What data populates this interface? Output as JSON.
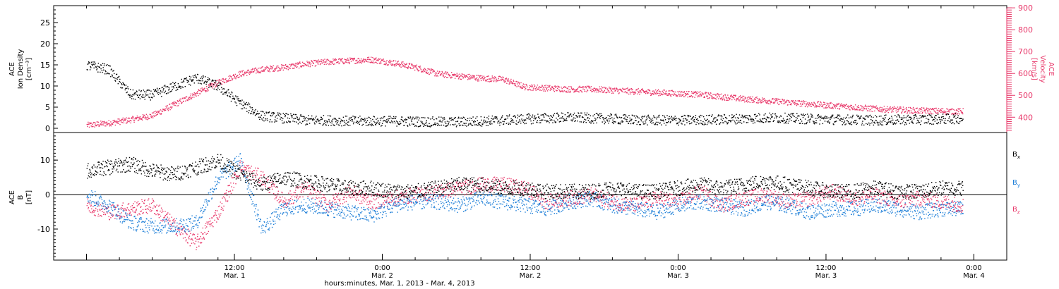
{
  "chart_data": [
    {
      "type": "scatter",
      "panel": "top",
      "ylabel_left": [
        "ACE",
        "Ion Density",
        "[cm⁻³]"
      ],
      "ylabel_right": [
        "ACE",
        "Velocity",
        "[km/s]"
      ],
      "ylim_left": [
        -1,
        29
      ],
      "ylim_right": [
        330,
        910
      ],
      "yticks_left": [
        0,
        5,
        10,
        15,
        20,
        25
      ],
      "yticks_right": [
        400,
        500,
        600,
        700,
        800,
        900
      ],
      "series": [
        {
          "axis": "left",
          "color": "#000000",
          "x": [
            0,
            2,
            4,
            6,
            8,
            10,
            12,
            14,
            16,
            18,
            20,
            22,
            24,
            26,
            28,
            30,
            32,
            34,
            36,
            38,
            40,
            42,
            44,
            46,
            48,
            50,
            52,
            54,
            56,
            58,
            60,
            62,
            64,
            66,
            68,
            70,
            72,
            74,
            76,
            78,
            80
          ],
          "y": [
            15,
            14,
            8,
            8,
            10,
            12,
            10,
            6,
            3,
            2.5,
            2,
            2,
            1.8,
            1.8,
            1.8,
            1.7,
            1.6,
            1.6,
            1.8,
            2,
            2.3,
            2.5,
            2.7,
            2.5,
            2.3,
            2.1,
            2,
            2,
            2.1,
            2.2,
            2.4,
            2.6,
            2.5,
            2.3,
            2.2,
            2.1,
            2.0,
            2.1,
            2.2,
            2.3,
            2.4
          ]
        },
        {
          "axis": "right",
          "color": "#e8386a",
          "x": [
            0,
            2,
            4,
            6,
            8,
            10,
            12,
            14,
            16,
            18,
            20,
            22,
            24,
            26,
            28,
            30,
            32,
            34,
            36,
            38,
            40,
            42,
            44,
            46,
            48,
            50,
            52,
            54,
            56,
            58,
            60,
            62,
            64,
            66,
            68,
            70,
            72,
            74,
            76,
            78,
            80
          ],
          "y": [
            365,
            375,
            390,
            410,
            460,
            510,
            560,
            600,
            620,
            630,
            645,
            655,
            660,
            665,
            650,
            630,
            600,
            590,
            580,
            575,
            540,
            535,
            530,
            530,
            525,
            520,
            515,
            510,
            505,
            495,
            485,
            478,
            470,
            462,
            455,
            448,
            440,
            436,
            432,
            430,
            428
          ]
        }
      ]
    },
    {
      "type": "scatter",
      "panel": "bottom",
      "ylabel": [
        "ACE",
        "B",
        "[nT]"
      ],
      "ylim": [
        -19,
        18
      ],
      "yticks": [
        -10,
        0,
        10
      ],
      "xlabel": "hours:minutes, Mar.  1, 2013 - Mar.  4, 2013",
      "xlim": [
        -3,
        84
      ],
      "xticks": [
        {
          "x": 0,
          "time": "",
          "date": ""
        },
        {
          "x": 13.5,
          "time": "12:00",
          "date": "Mar. 1"
        },
        {
          "x": 27,
          "time": "0:00",
          "date": "Mar. 2"
        },
        {
          "x": 40.5,
          "time": "12:00",
          "date": "Mar. 2"
        },
        {
          "x": 54,
          "time": "0:00",
          "date": "Mar. 3"
        },
        {
          "x": 67.5,
          "time": "12:00",
          "date": "Mar. 3"
        },
        {
          "x": 81,
          "time": "0:00",
          "date": "Mar. 4"
        }
      ],
      "legend": [
        "Bx",
        "By",
        "Bz"
      ],
      "series": [
        {
          "name": "Bx",
          "color": "#000000",
          "x": [
            0,
            2,
            4,
            6,
            8,
            10,
            12,
            14,
            16,
            18,
            20,
            22,
            24,
            26,
            28,
            30,
            32,
            34,
            36,
            38,
            40,
            42,
            44,
            46,
            48,
            50,
            52,
            54,
            56,
            58,
            60,
            62,
            64,
            66,
            68,
            70,
            72,
            74,
            76,
            78,
            80
          ],
          "y": [
            7,
            8,
            9,
            7,
            6,
            8,
            10,
            6,
            3,
            5,
            4,
            3,
            2,
            2,
            1,
            1,
            2,
            3,
            3,
            2,
            2,
            1,
            1,
            1,
            2,
            1,
            1,
            2,
            3,
            2,
            3,
            4,
            3,
            2,
            1,
            1,
            2,
            1,
            1,
            2,
            2
          ]
        },
        {
          "name": "By",
          "color": "#1e7fd8",
          "x": [
            0,
            2,
            4,
            6,
            8,
            10,
            12,
            14,
            16,
            18,
            20,
            22,
            24,
            26,
            28,
            30,
            32,
            34,
            36,
            38,
            40,
            42,
            44,
            46,
            48,
            50,
            52,
            54,
            56,
            58,
            60,
            62,
            64,
            66,
            68,
            70,
            72,
            74,
            76,
            78,
            80
          ],
          "y": [
            0,
            -3,
            -8,
            -9,
            -9,
            -8,
            5,
            10,
            -10,
            -4,
            -3,
            -4,
            -5,
            -6,
            -3,
            -2,
            -2,
            -3,
            -1,
            -2,
            -3,
            -4,
            -2,
            -1,
            -3,
            -4,
            -5,
            -3,
            -2,
            -3,
            -4,
            -2,
            -3,
            -5,
            -4,
            -4,
            -3,
            -4,
            -5,
            -4,
            -4
          ]
        },
        {
          "name": "Bz",
          "color": "#e8386a",
          "x": [
            0,
            2,
            4,
            6,
            8,
            10,
            12,
            14,
            16,
            18,
            20,
            22,
            24,
            26,
            28,
            30,
            32,
            34,
            36,
            38,
            40,
            42,
            44,
            46,
            48,
            50,
            52,
            54,
            56,
            58,
            60,
            62,
            64,
            66,
            68,
            70,
            72,
            74,
            76,
            78,
            80
          ],
          "y": [
            -3,
            -5,
            -4,
            -3,
            -9,
            -14,
            -5,
            8,
            5,
            -2,
            2,
            -3,
            1,
            -2,
            -1,
            0,
            1,
            2,
            3,
            3,
            2,
            -2,
            -1,
            0,
            -2,
            -3,
            -1,
            -2,
            1,
            -3,
            -1,
            0,
            -2,
            -1,
            1,
            -1,
            0,
            -2,
            -1,
            -2,
            -3
          ]
        }
      ]
    }
  ]
}
